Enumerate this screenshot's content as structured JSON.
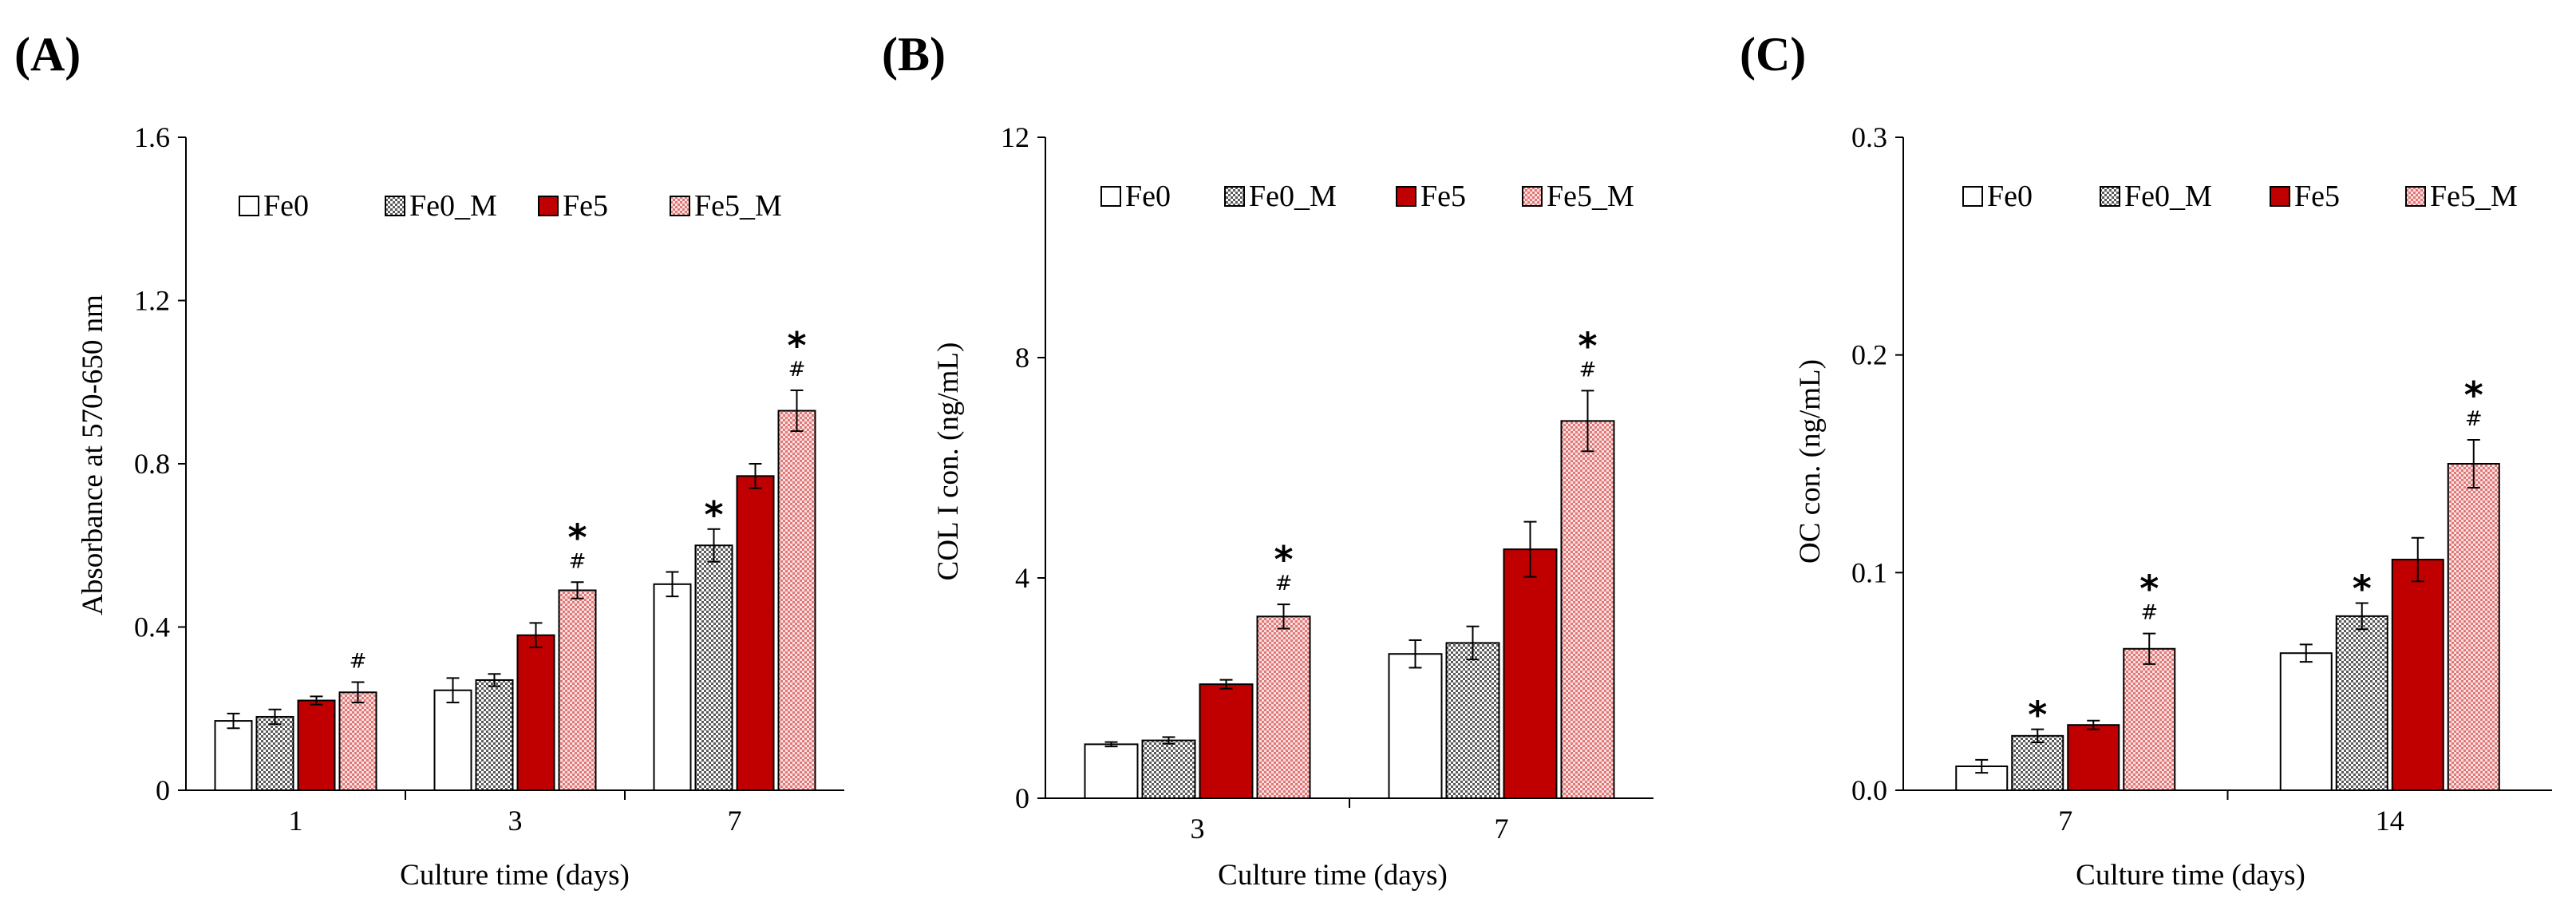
{
  "colors": {
    "Fe0_fill": "#ffffff",
    "Fe0_M_dots": "#5a5a5a",
    "Fe5_fill": "#c00000",
    "Fe5_M_base": "#fbe0e0",
    "Fe5_M_dots": "#e07878",
    "axis": "#000000"
  },
  "chart_data": [
    {
      "type": "bar",
      "panel_label": "(A)",
      "xlabel": "Culture time (days)",
      "ylabel": "Absorbance at 570-650 nm",
      "ylim": [
        0,
        1.6
      ],
      "yticks": [
        "0",
        "0.4",
        "0.8",
        "1.2",
        "1.6"
      ],
      "categories": [
        "1",
        "3",
        "7"
      ],
      "legend_position": "top",
      "series": [
        {
          "name": "Fe0",
          "values": [
            0.17,
            0.245,
            0.505
          ],
          "errors": [
            0.018,
            0.03,
            0.03
          ],
          "sig_star": [
            false,
            false,
            false
          ],
          "sig_hash": [
            false,
            false,
            false
          ]
        },
        {
          "name": "Fe0_M",
          "values": [
            0.18,
            0.27,
            0.6
          ],
          "errors": [
            0.018,
            0.015,
            0.04
          ],
          "sig_star": [
            false,
            false,
            true
          ],
          "sig_hash": [
            false,
            false,
            false
          ]
        },
        {
          "name": "Fe5",
          "values": [
            0.22,
            0.38,
            0.77
          ],
          "errors": [
            0.01,
            0.03,
            0.03
          ],
          "sig_star": [
            false,
            false,
            false
          ],
          "sig_hash": [
            false,
            false,
            false
          ]
        },
        {
          "name": "Fe5_M",
          "values": [
            0.24,
            0.49,
            0.93
          ],
          "errors": [
            0.025,
            0.02,
            0.05
          ],
          "sig_star": [
            false,
            true,
            true
          ],
          "sig_hash": [
            true,
            true,
            true
          ]
        }
      ],
      "annotations": {
        "star": "*",
        "hash": "#"
      }
    },
    {
      "type": "bar",
      "panel_label": "(B)",
      "xlabel": "Culture time (days)",
      "ylabel": "COL I con. (ng/mL)",
      "ylim": [
        0,
        12
      ],
      "yticks": [
        "0",
        "4",
        "8",
        "12"
      ],
      "categories": [
        "3",
        "7"
      ],
      "legend_position": "top",
      "series": [
        {
          "name": "Fe0",
          "values": [
            0.98,
            2.62
          ],
          "errors": [
            0.04,
            0.25
          ],
          "sig_star": [
            false,
            false
          ],
          "sig_hash": [
            false,
            false
          ]
        },
        {
          "name": "Fe0_M",
          "values": [
            1.05,
            2.82
          ],
          "errors": [
            0.06,
            0.3
          ],
          "sig_star": [
            false,
            false
          ],
          "sig_hash": [
            false,
            false
          ]
        },
        {
          "name": "Fe5",
          "values": [
            2.07,
            4.52
          ],
          "errors": [
            0.08,
            0.5
          ],
          "sig_star": [
            false,
            false
          ],
          "sig_hash": [
            false,
            false
          ]
        },
        {
          "name": "Fe5_M",
          "values": [
            3.3,
            6.85
          ],
          "errors": [
            0.22,
            0.55
          ],
          "sig_star": [
            true,
            true
          ],
          "sig_hash": [
            true,
            true
          ]
        }
      ],
      "annotations": {
        "star": "*",
        "hash": "#"
      }
    },
    {
      "type": "bar",
      "panel_label": "(C)",
      "xlabel": "Culture time (days)",
      "ylabel": "OC con. (ng/mL)",
      "ylim": [
        0,
        0.3
      ],
      "yticks": [
        "0.0",
        "0.1",
        "0.2",
        "0.3"
      ],
      "categories": [
        "7",
        "14"
      ],
      "legend_position": "top",
      "series": [
        {
          "name": "Fe0",
          "values": [
            0.011,
            0.063
          ],
          "errors": [
            0.003,
            0.004
          ],
          "sig_star": [
            false,
            false
          ],
          "sig_hash": [
            false,
            false
          ]
        },
        {
          "name": "Fe0_M",
          "values": [
            0.025,
            0.08
          ],
          "errors": [
            0.003,
            0.006
          ],
          "sig_star": [
            true,
            true
          ],
          "sig_hash": [
            false,
            false
          ]
        },
        {
          "name": "Fe5",
          "values": [
            0.03,
            0.106
          ],
          "errors": [
            0.002,
            0.01
          ],
          "sig_star": [
            false,
            false
          ],
          "sig_hash": [
            false,
            false
          ]
        },
        {
          "name": "Fe5_M",
          "values": [
            0.065,
            0.15
          ],
          "errors": [
            0.007,
            0.011
          ],
          "sig_star": [
            true,
            true
          ],
          "sig_hash": [
            true,
            true
          ]
        }
      ],
      "annotations": {
        "star": "*",
        "hash": "#"
      }
    }
  ]
}
